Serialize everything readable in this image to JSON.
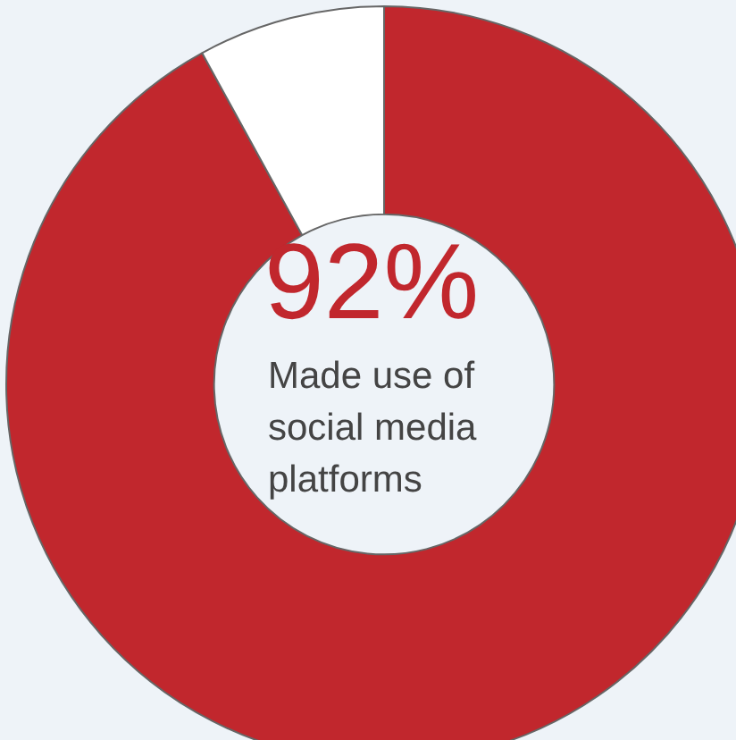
{
  "chart_data": {
    "type": "donut",
    "categories": [
      null,
      null
    ],
    "values": [
      92,
      8
    ],
    "colors": [
      "#c1272d",
      "#ffffff"
    ],
    "value_labels": [
      "92%",
      null
    ],
    "annotations": [
      "Made use of social media platforms"
    ],
    "legend": false
  }
}
